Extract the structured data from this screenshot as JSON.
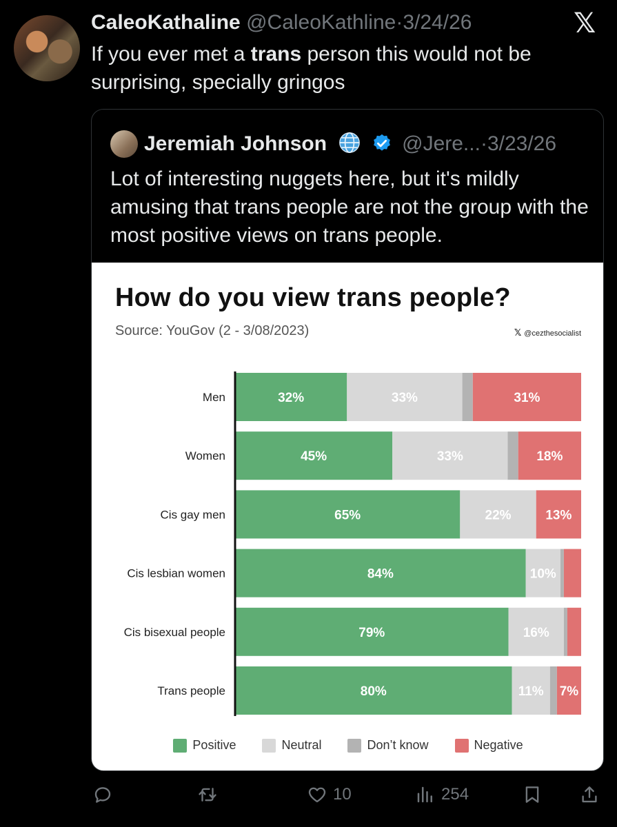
{
  "tweet": {
    "author_name": "CaleoKathaline",
    "author_handle": "@CaleoKathline",
    "separator": "·",
    "date": "3/24/26",
    "text_before": "If you ever met a ",
    "text_bold": "trans",
    "text_after": " person this would not be surprising, specially gringos"
  },
  "quote": {
    "author_name": "Jeremiah Johnson",
    "author_handle": "@Jere...",
    "separator": "·",
    "date": "3/23/26",
    "text": "Lot of interesting nuggets here, but it's mildly amusing that trans people are not the group with the most positive views on trans people."
  },
  "chart_image": {
    "title": "How do you view trans people?",
    "source": "Source: YouGov (2 - 3/08/2023)",
    "credit": "@cezthesocialist"
  },
  "chart_data": {
    "type": "bar",
    "orientation": "horizontal-stacked-100",
    "title": "How do you view trans people?",
    "categories": [
      "Men",
      "Women",
      "Cis gay men",
      "Cis lesbian women",
      "Cis bisexual people",
      "Trans people"
    ],
    "series": [
      {
        "name": "Positive",
        "values": [
          32,
          45,
          65,
          84,
          79,
          80
        ],
        "color": "#5fad74"
      },
      {
        "name": "Neutral",
        "values": [
          33,
          33,
          22,
          10,
          16,
          11
        ],
        "color": "#d8d8d8"
      },
      {
        "name": "Don't know",
        "values": [
          3,
          3,
          0,
          1,
          1,
          2
        ],
        "color": "#b3b3b3"
      },
      {
        "name": "Negative",
        "values": [
          31,
          18,
          13,
          5,
          4,
          7
        ],
        "color": "#e07272"
      }
    ],
    "labels": [
      [
        "32%",
        "33%",
        "",
        "31%"
      ],
      [
        "45%",
        "33%",
        "",
        "18%"
      ],
      [
        "65%",
        "22%",
        "",
        "13%"
      ],
      [
        "84%",
        "10%",
        "",
        ""
      ],
      [
        "79%",
        "16%",
        "",
        ""
      ],
      [
        "80%",
        "11%",
        "",
        "7%"
      ]
    ],
    "legend_labels": [
      "Positive",
      "Neutral",
      "Don’t know",
      "Negative"
    ],
    "legend": "bottom"
  },
  "actions": {
    "replies": "",
    "retweets": "",
    "likes": "10",
    "views": "254"
  },
  "icons": {
    "close": "x-logo-icon",
    "reply": "reply-icon",
    "retweet": "retweet-icon",
    "like": "heart-icon",
    "views": "views-icon",
    "bookmark": "bookmark-icon",
    "share": "share-icon"
  },
  "colors": {
    "background": "#000000",
    "muted": "#71767b",
    "verified": "#1d9bf0"
  }
}
